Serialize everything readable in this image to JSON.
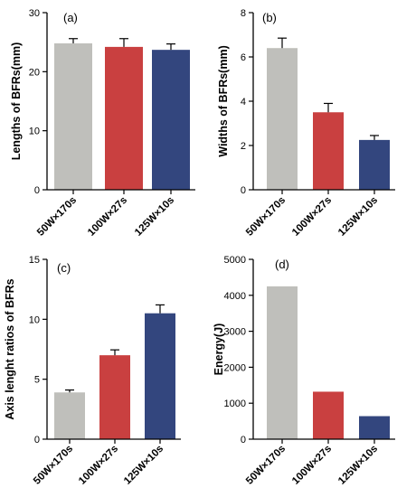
{
  "chart_data": [
    {
      "panel": "(a)",
      "type": "bar",
      "categories": [
        "50W×170s",
        "100W×27s",
        "125W×10s"
      ],
      "values": [
        24.8,
        24.2,
        23.7
      ],
      "errors": [
        0.8,
        1.4,
        1.0
      ],
      "ylabel": "Lengths of BFRs(mm)",
      "ylim": [
        0,
        30
      ],
      "yticks": [
        0,
        10,
        20,
        30
      ],
      "colors": [
        "#bfbfbb",
        "#c94040",
        "#33467e"
      ]
    },
    {
      "panel": "(b)",
      "type": "bar",
      "categories": [
        "50W×170s",
        "100W×27s",
        "125W×10s"
      ],
      "values": [
        6.4,
        3.5,
        2.25
      ],
      "errors": [
        0.45,
        0.4,
        0.2
      ],
      "ylabel": "Widths of BFRs(mm)",
      "ylim": [
        0,
        8
      ],
      "yticks": [
        0,
        2,
        4,
        6,
        8
      ],
      "colors": [
        "#bfbfbb",
        "#c94040",
        "#33467e"
      ]
    },
    {
      "panel": "(c)",
      "type": "bar",
      "categories": [
        "50W×170s",
        "100W×27s",
        "125W×10s"
      ],
      "values": [
        3.9,
        7.0,
        10.5
      ],
      "errors": [
        0.2,
        0.45,
        0.7
      ],
      "ylabel": "Axis lenght ratios of BFRs",
      "ylim": [
        0,
        15
      ],
      "yticks": [
        0,
        5,
        10,
        15
      ],
      "colors": [
        "#bfbfbb",
        "#c94040",
        "#33467e"
      ]
    },
    {
      "panel": "(d)",
      "type": "bar",
      "categories": [
        "50W×170s",
        "100W×27s",
        "125W×10s"
      ],
      "values": [
        4250,
        1320,
        640
      ],
      "errors": [
        0,
        0,
        0
      ],
      "ylabel": "Energy(J)",
      "ylim": [
        0,
        5000
      ],
      "yticks": [
        0,
        1000,
        2000,
        3000,
        4000,
        5000
      ],
      "colors": [
        "#bfbfbb",
        "#c94040",
        "#33467e"
      ]
    }
  ]
}
